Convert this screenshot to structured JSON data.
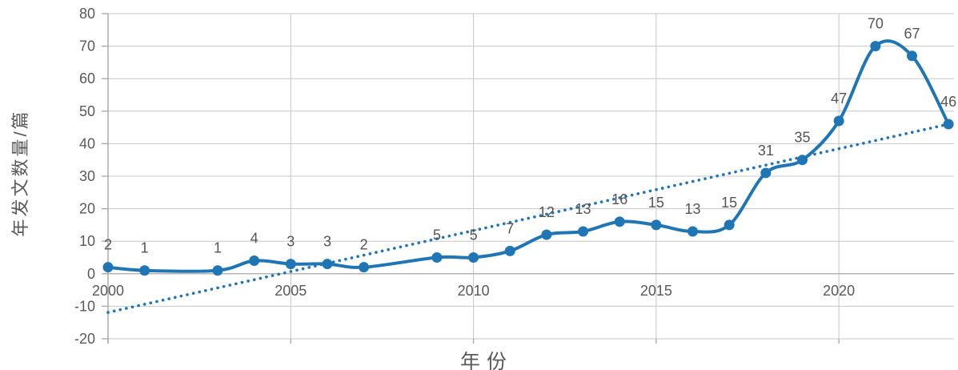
{
  "chart": {
    "x_axis_title": "年份",
    "y_axis_title": "年发文数量/篇"
  },
  "chart_data": {
    "type": "line",
    "title": "",
    "xlabel": "年份",
    "ylabel": "年发文数量/篇",
    "smooth": true,
    "grid": true,
    "legend_position": "none",
    "x": [
      2000,
      2001,
      2003,
      2004,
      2005,
      2006,
      2007,
      2009,
      2010,
      2011,
      2012,
      2013,
      2014,
      2015,
      2016,
      2017,
      2018,
      2019,
      2020,
      2021,
      2022,
      2023
    ],
    "values": [
      2,
      1,
      1,
      4,
      3,
      3,
      2,
      5,
      5,
      7,
      12,
      13,
      16,
      15,
      13,
      15,
      31,
      35,
      47,
      70,
      67,
      46
    ],
    "data_labels_shown": true,
    "xlim": [
      2000,
      2023.15
    ],
    "ylim": [
      -20,
      80
    ],
    "x_ticks": [
      2000,
      2005,
      2010,
      2015,
      2020
    ],
    "y_ticks": [
      80,
      70,
      60,
      50,
      40,
      30,
      20,
      10,
      0,
      -10,
      -20
    ],
    "trendline": {
      "type": "linear",
      "style": "dotted",
      "start": {
        "x": 2000,
        "y": -11.9
      },
      "end": {
        "x": 2023,
        "y": 46
      }
    },
    "colors": {
      "series": "#2076B5",
      "marker": "#2076B5",
      "trendline": "#2076B5",
      "grid": "#C7C7C7",
      "axis": "#A6A6A6",
      "text": "#595959"
    }
  }
}
